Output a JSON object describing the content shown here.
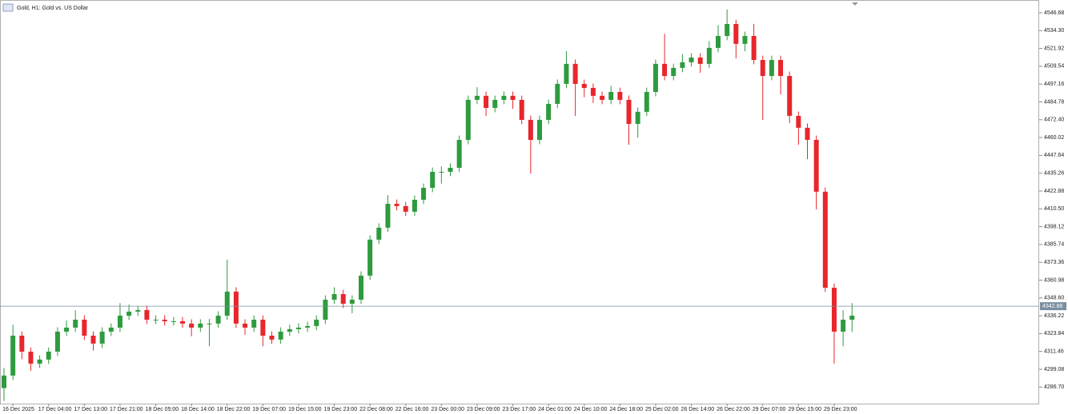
{
  "chart_data": {
    "type": "candlestick",
    "title": "Gold, H1:  Gold vs. US Dollar",
    "categories": [
      null,
      "16 Dec 2025",
      null,
      null,
      null,
      "17 Dec 04:00",
      null,
      null,
      null,
      "17 Dec 13:00",
      null,
      null,
      null,
      "17 Dec 21:00",
      null,
      null,
      null,
      "18 Dec 05:00",
      null,
      null,
      null,
      "18 Dec 14:00",
      null,
      null,
      null,
      "18 Dec 22:00",
      null,
      null,
      null,
      "19 Dec 07:00",
      null,
      null,
      null,
      "19 Dec 15:00",
      null,
      null,
      null,
      "19 Dec 23:00",
      null,
      null,
      null,
      "22 Dec 08:00",
      null,
      null,
      null,
      "22 Dec 16:00",
      null,
      null,
      null,
      "23 Dec 00:00",
      null,
      null,
      null,
      "23 Dec 09:00",
      null,
      null,
      null,
      "23 Dec 17:00",
      null,
      null,
      null,
      "24 Dec 01:00",
      null,
      null,
      null,
      "24 Dec 10:00",
      null,
      null,
      null,
      "24 Dec 18:00",
      null,
      null,
      null,
      "25 Dec 02:00",
      null,
      null,
      null,
      "26 Dec 14:00",
      null,
      null,
      null,
      "26 Dec 22:00",
      null,
      null,
      null,
      "29 Dec 07:00",
      null,
      null,
      null,
      "29 Dec 15:00",
      null,
      null,
      null,
      "29 Dec 23:00",
      null,
      null
    ],
    "open": [
      4286.0,
      4294.7,
      4322.4,
      4311.3,
      4303.0,
      4305.8,
      4311.3,
      4325.2,
      4328.0,
      4333.5,
      4322.4,
      4316.9,
      4325.2,
      4328.0,
      4336.3,
      4339.1,
      4340.2,
      4333.5,
      4333.5,
      4332.4,
      4332.4,
      4330.8,
      4328.0,
      4330.8,
      4330.8,
      4336.3,
      4353.0,
      4330.8,
      4328.0,
      4333.5,
      4322.4,
      4319.7,
      4325.2,
      4326.9,
      4328.0,
      4329.1,
      4333.5,
      4347.4,
      4351.3,
      4344.6,
      4347.4,
      4364.1,
      4389.1,
      4397.4,
      4414.0,
      4412.4,
      4408.5,
      4416.8,
      4425.1,
      4436.2,
      4436.2,
      4439.0,
      4458.4,
      4486.2,
      4489.0,
      4480.6,
      4486.2,
      4489.0,
      4486.2,
      4472.3,
      4458.4,
      4472.3,
      4483.4,
      4497.3,
      4511.2,
      4497.3,
      4494.5,
      4489.0,
      4486.2,
      4491.7,
      4486.2,
      4469.5,
      4477.9,
      4491.7,
      4511.2,
      4502.8,
      4508.4,
      4512.3,
      4515.6,
      4511.2,
      4522.3,
      4530.6,
      4538.9,
      4525.1,
      4530.6,
      4513.9,
      4502.8,
      4513.9,
      4502.8,
      4475.1,
      4466.8,
      4458.4,
      4422.4,
      4355.7,
      4325.2,
      4333.5
    ],
    "high": [
      4300.0,
      4330.0,
      4325.4,
      4314.3,
      4308.8,
      4314.3,
      4328.2,
      4333.0,
      4340.0,
      4336.5,
      4325.4,
      4328.2,
      4331.0,
      4345.0,
      4344.0,
      4343.2,
      4343.2,
      4336.5,
      4336.5,
      4335.4,
      4335.4,
      4333.8,
      4333.8,
      4334.0,
      4339.3,
      4375.2,
      4356.0,
      4333.8,
      4336.5,
      4336.5,
      4325.4,
      4328.2,
      4330.0,
      4331.0,
      4332.1,
      4336.5,
      4350.4,
      4356.0,
      4354.3,
      4350.4,
      4367.1,
      4392.1,
      4400.4,
      4420.0,
      4417.0,
      4415.4,
      4419.8,
      4428.1,
      4439.2,
      4440.0,
      4442.0,
      4461.4,
      4489.2,
      4495.0,
      4492.0,
      4489.2,
      4492.0,
      4492.0,
      4489.2,
      4475.3,
      4475.3,
      4486.4,
      4500.3,
      4520.0,
      4514.2,
      4500.3,
      4497.5,
      4492.0,
      4496.0,
      4494.7,
      4489.2,
      4480.9,
      4494.7,
      4514.2,
      4532.0,
      4511.4,
      4518.0,
      4518.6,
      4518.6,
      4527.0,
      4538.0,
      4548.9,
      4541.9,
      4533.6,
      4539.0,
      4516.9,
      4516.9,
      4516.9,
      4505.8,
      4478.1,
      4469.8,
      4461.4,
      4425.4,
      4358.7,
      4340.0,
      4345.0
    ],
    "low": [
      4277.0,
      4291.7,
      4306.0,
      4298.0,
      4300.0,
      4302.8,
      4308.3,
      4322.2,
      4325.0,
      4319.4,
      4312.0,
      4313.9,
      4322.2,
      4325.0,
      4333.3,
      4336.1,
      4330.5,
      4330.5,
      4329.4,
      4329.4,
      4327.8,
      4322.0,
      4325.0,
      4315.0,
      4327.8,
      4333.3,
      4327.8,
      4323.0,
      4325.0,
      4315.0,
      4316.7,
      4316.7,
      4322.2,
      4323.9,
      4325.0,
      4326.1,
      4330.5,
      4344.4,
      4341.6,
      4338.0,
      4344.4,
      4361.1,
      4386.1,
      4394.4,
      4409.4,
      4405.5,
      4405.5,
      4413.8,
      4422.1,
      4428.0,
      4433.2,
      4436.0,
      4455.4,
      4483.2,
      4475.0,
      4477.6,
      4483.2,
      4480.0,
      4469.3,
      4435.0,
      4455.4,
      4469.3,
      4480.4,
      4494.3,
      4475.0,
      4488.0,
      4484.0,
      4483.2,
      4483.2,
      4483.2,
      4455.0,
      4460.0,
      4474.9,
      4488.7,
      4499.8,
      4499.8,
      4505.4,
      4509.3,
      4505.0,
      4508.2,
      4519.3,
      4527.6,
      4515.0,
      4520.0,
      4510.9,
      4472.3,
      4499.8,
      4490.0,
      4470.0,
      4455.0,
      4445.0,
      4410.0,
      4352.7,
      4303.0,
      4315.0,
      4325.0
    ],
    "close": [
      4294.7,
      4322.4,
      4311.3,
      4303.0,
      4305.8,
      4311.3,
      4325.2,
      4328.0,
      4333.5,
      4322.4,
      4316.9,
      4325.2,
      4328.0,
      4336.3,
      4339.1,
      4340.2,
      4333.5,
      4333.5,
      4332.4,
      4332.4,
      4330.8,
      4328.0,
      4330.8,
      4330.8,
      4336.3,
      4353.0,
      4330.8,
      4328.0,
      4333.5,
      4322.4,
      4319.7,
      4325.2,
      4326.9,
      4328.0,
      4329.1,
      4333.5,
      4347.4,
      4351.3,
      4344.6,
      4347.4,
      4364.1,
      4389.1,
      4397.4,
      4414.0,
      4412.4,
      4408.5,
      4416.8,
      4425.1,
      4436.2,
      4436.2,
      4439.0,
      4458.4,
      4486.2,
      4489.0,
      4480.6,
      4486.2,
      4489.0,
      4486.2,
      4472.3,
      4458.4,
      4472.3,
      4483.4,
      4497.3,
      4511.2,
      4497.3,
      4494.5,
      4489.0,
      4486.2,
      4491.7,
      4486.2,
      4469.5,
      4477.9,
      4491.7,
      4511.2,
      4502.8,
      4508.4,
      4512.3,
      4515.6,
      4511.2,
      4522.3,
      4530.6,
      4538.9,
      4525.1,
      4530.6,
      4513.9,
      4502.8,
      4513.9,
      4502.8,
      4475.1,
      4466.8,
      4458.4,
      4422.4,
      4355.7,
      4325.2,
      4333.5,
      4336.3
    ],
    "up_color": "#2e9b3e",
    "down_color": "#e8262b",
    "ylim": [
      4275.21,
      4555.56
    ],
    "yticks": [
      4546.68,
      {
        "value": 4534.3,
        "label": "4534.30"
      },
      4521.92,
      4509.54,
      4497.16,
      4484.78,
      {
        "value": 4472.4,
        "label": "4472.40"
      },
      4460.02,
      4447.64,
      4435.26,
      4422.88,
      {
        "value": 4410.5,
        "label": "4410.50"
      },
      4398.12,
      4385.74,
      4373.36,
      4360.98,
      {
        "value": 4348.6,
        "label": "4348.60"
      },
      4336.22,
      4323.84,
      4311.46,
      4299.08,
      {
        "value": 4286.7,
        "label": "4286.70"
      }
    ],
    "current_price": 4342.88
  }
}
